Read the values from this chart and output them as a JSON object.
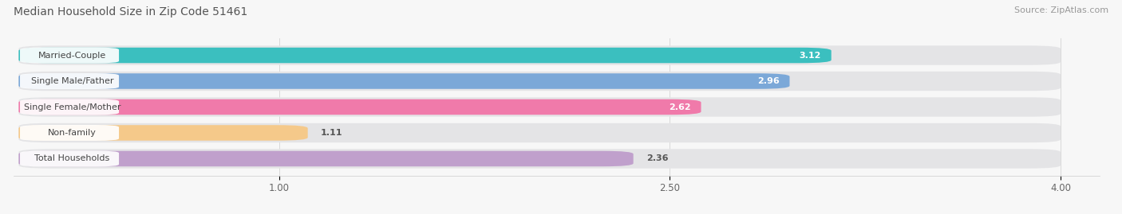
{
  "title": "Median Household Size in Zip Code 51461",
  "source": "Source: ZipAtlas.com",
  "categories": [
    "Married-Couple",
    "Single Male/Father",
    "Single Female/Mother",
    "Non-family",
    "Total Households"
  ],
  "values": [
    3.12,
    2.96,
    2.62,
    1.11,
    2.36
  ],
  "bar_colors": [
    "#3bbfbf",
    "#7ba8d8",
    "#f07aaa",
    "#f5c98a",
    "#c0a0cc"
  ],
  "bar_bg_color": "#e8e8ea",
  "xlim_min": 0.0,
  "xlim_max": 4.0,
  "xticks": [
    1.0,
    2.5,
    4.0
  ],
  "title_fontsize": 10,
  "source_fontsize": 8,
  "label_fontsize": 8,
  "value_fontsize": 8,
  "background_color": "#f7f7f7",
  "bar_bg_full_color": "#e4e4e6"
}
